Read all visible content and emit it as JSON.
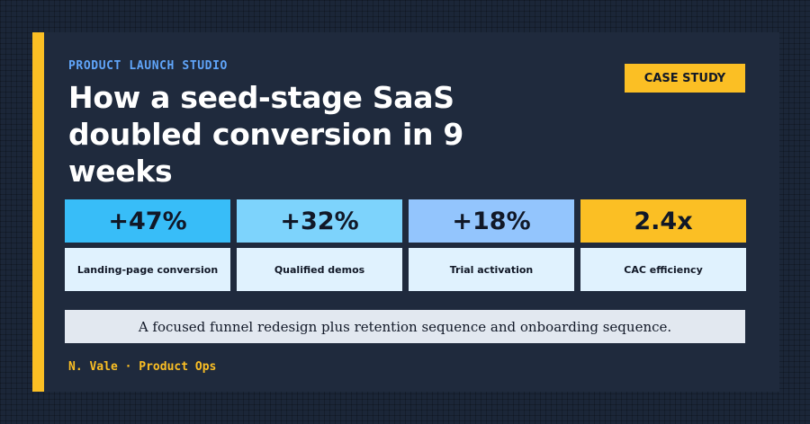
{
  "header": {
    "eyebrow": "PRODUCT LAUNCH STUDIO",
    "badge": "CASE STUDY",
    "title": "How a seed-stage SaaS doubled conversion in 9 weeks"
  },
  "stats": [
    {
      "value": "+47%",
      "label": "Landing-page conversion",
      "color": "#38bdf8"
    },
    {
      "value": "+32%",
      "label": "Qualified demos",
      "color": "#7dd3fc"
    },
    {
      "value": "+18%",
      "label": "Trial activation",
      "color": "#93c5fd"
    },
    {
      "value": "2.4x",
      "label": "CAC efficiency",
      "color": "#fbbf24"
    }
  ],
  "summary": "A focused funnel redesign plus retention sequence and onboarding sequence.",
  "byline": "N. Vale · Product Ops",
  "colors": {
    "accent": "#fbbf24",
    "eyebrow": "#60a5fa",
    "card_background": "#1f2a3d"
  }
}
